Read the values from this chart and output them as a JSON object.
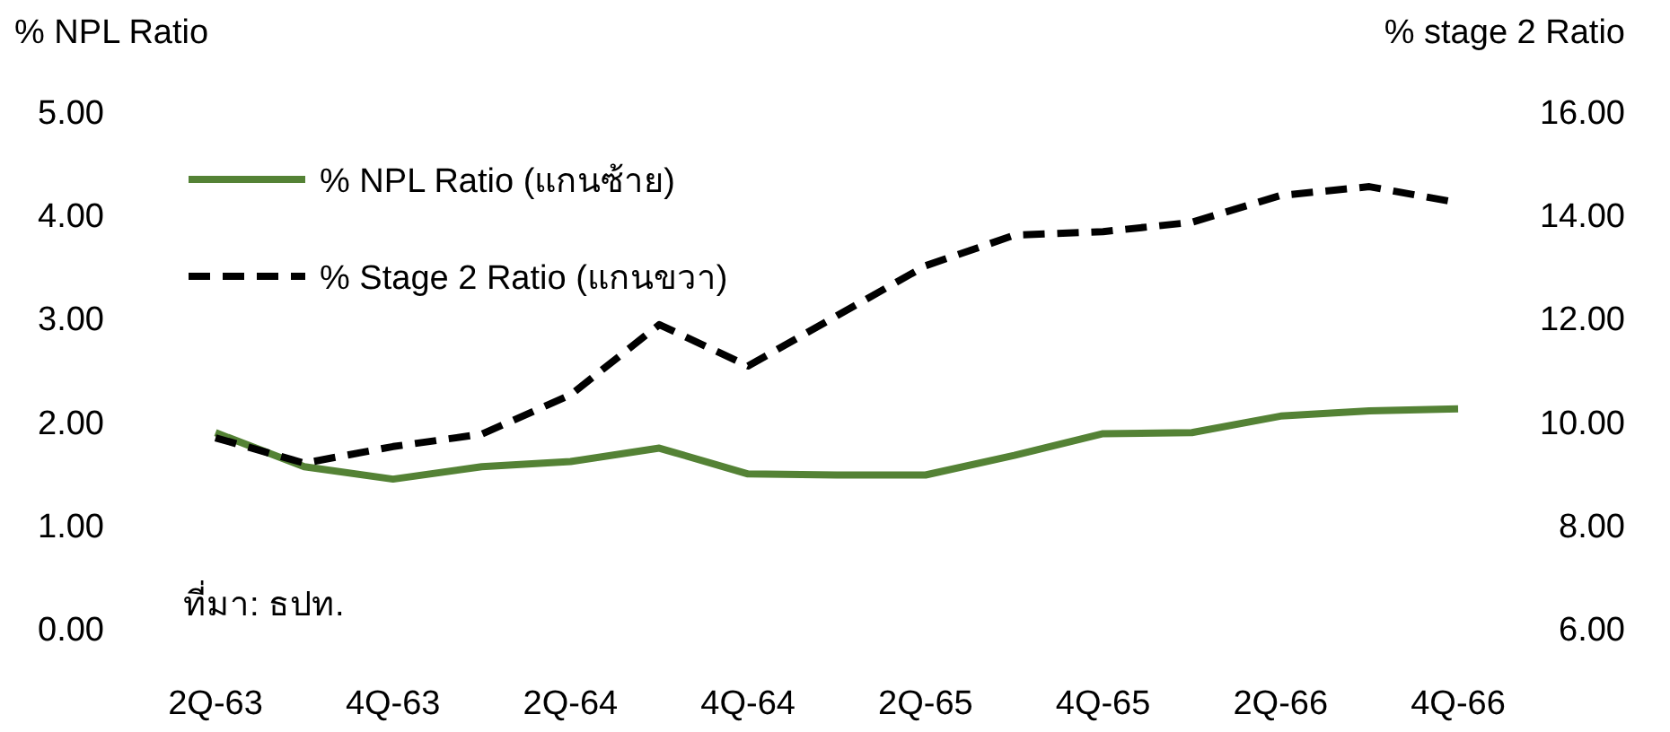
{
  "chart_data": {
    "type": "line",
    "ylabel": "% NPL Ratio",
    "y2label": "% stage 2 Ratio",
    "categories": [
      "2Q-63",
      null,
      "4Q-63",
      null,
      "2Q-64",
      null,
      "4Q-64",
      null,
      "2Q-65",
      null,
      "4Q-65",
      null,
      "2Q-66",
      null,
      "4Q-66"
    ],
    "series": [
      {
        "name": "% NPL Ratio (แกนซ้าย)",
        "color": "#548235",
        "line_style": "solid",
        "values": [
          1.89,
          1.56,
          1.44,
          1.56,
          1.61,
          1.74,
          1.49,
          1.48,
          1.48,
          1.67,
          1.88,
          1.89,
          2.05,
          2.1,
          2.12
        ]
      },
      {
        "name": "% Stage 2 Ratio (แกนขวา)",
        "color": "#000000",
        "line_style": "dashed",
        "axis": "y2",
        "values": [
          9.68,
          9.19,
          9.51,
          9.75,
          10.51,
          11.87,
          11.07,
          12.04,
          13.01,
          13.6,
          13.67,
          13.85,
          14.37,
          14.54,
          14.23
        ]
      }
    ],
    "ylim": [
      0,
      5
    ],
    "yticks": [
      {
        "value": 0,
        "label": "0.00"
      },
      {
        "value": 1,
        "label": "1.00"
      },
      {
        "value": 2,
        "label": "2.00"
      },
      {
        "value": 3,
        "label": "3.00"
      },
      {
        "value": 4,
        "label": "4.00"
      },
      {
        "value": 5,
        "label": "5.00"
      }
    ],
    "y2lim": [
      6,
      16
    ],
    "y2ticks": [
      {
        "value": 6,
        "label": "6.00"
      },
      {
        "value": 8,
        "label": "8.00"
      },
      {
        "value": 10,
        "label": "10.00"
      },
      {
        "value": 12,
        "label": "12.00"
      },
      {
        "value": 14,
        "label": "14.00"
      },
      {
        "value": 16,
        "label": "16.00"
      }
    ],
    "legend": "top left",
    "grid": false,
    "annotations": [
      "ที่มา: ธปท."
    ]
  }
}
